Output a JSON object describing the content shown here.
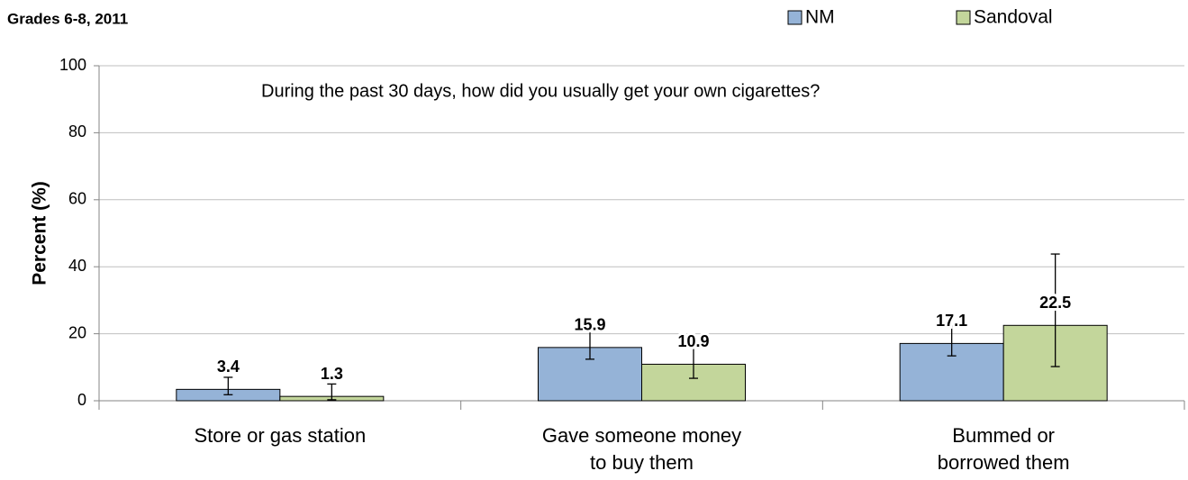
{
  "chart_data": {
    "type": "bar",
    "title": "Grades 6-8, 2011",
    "annotation": "During the past 30 days, how did you usually get your own cigarettes?",
    "y_label": "Percent (%)",
    "categories": [
      "Store or gas station",
      "Gave someone money\nto buy them",
      "Bummed or\nborrowed them"
    ],
    "series": [
      {
        "name": "NM",
        "color": "#95b3d7",
        "values": [
          3.4,
          15.9,
          17.1
        ],
        "ci_low": [
          1.8,
          12.4,
          13.4
        ],
        "ci_high": [
          7.0,
          22.3,
          22.3
        ]
      },
      {
        "name": "Sandoval",
        "color": "#c3d69b",
        "values": [
          1.3,
          10.9,
          22.5
        ],
        "ci_low": [
          0.3,
          6.7,
          10.2
        ],
        "ci_high": [
          5.0,
          16.7,
          43.8
        ]
      }
    ],
    "ylim": [
      0,
      100
    ],
    "yticks": [
      0,
      20,
      40,
      60,
      80,
      100
    ],
    "grid": true,
    "legend": "top-right"
  }
}
